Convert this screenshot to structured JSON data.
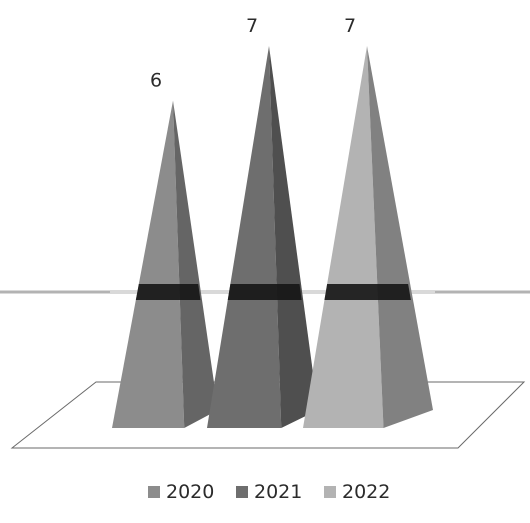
{
  "chart_data": {
    "type": "bar",
    "shape": "pyramid-3d",
    "categories": [
      ""
    ],
    "series": [
      {
        "name": "2020",
        "values": [
          6
        ],
        "color": "#8c8c8c"
      },
      {
        "name": "2021",
        "values": [
          7
        ],
        "color": "#6e6e6e"
      },
      {
        "name": "2022",
        "values": [
          7
        ],
        "color": "#b3b3b3"
      }
    ],
    "data_labels": [
      "6",
      "7",
      "7"
    ],
    "ylim": [
      0,
      7
    ],
    "gridlines": "major-horizontal",
    "legend": "bottom",
    "floor_color": "#ffffff",
    "edge_color": "#4a4a4a"
  }
}
